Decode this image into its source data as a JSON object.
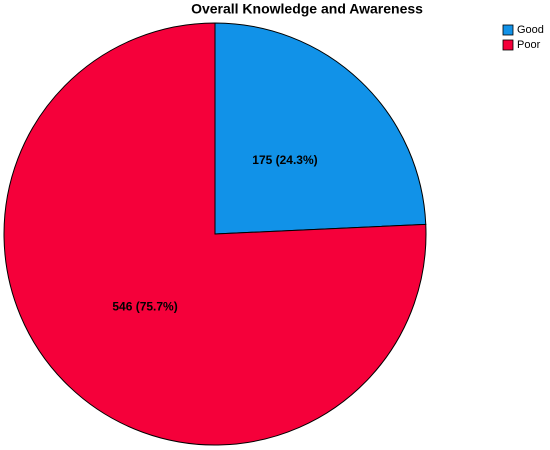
{
  "chart_data": {
    "type": "pie",
    "title": "Overall Knowledge and Awareness",
    "categories": [
      "Good",
      "Poor"
    ],
    "values": [
      175,
      546
    ],
    "value_labels": [
      "175 (24.3%)",
      "546 (75.7%)"
    ],
    "colors": [
      "#1192e8",
      "#f5003a"
    ],
    "legend": "top-right"
  }
}
